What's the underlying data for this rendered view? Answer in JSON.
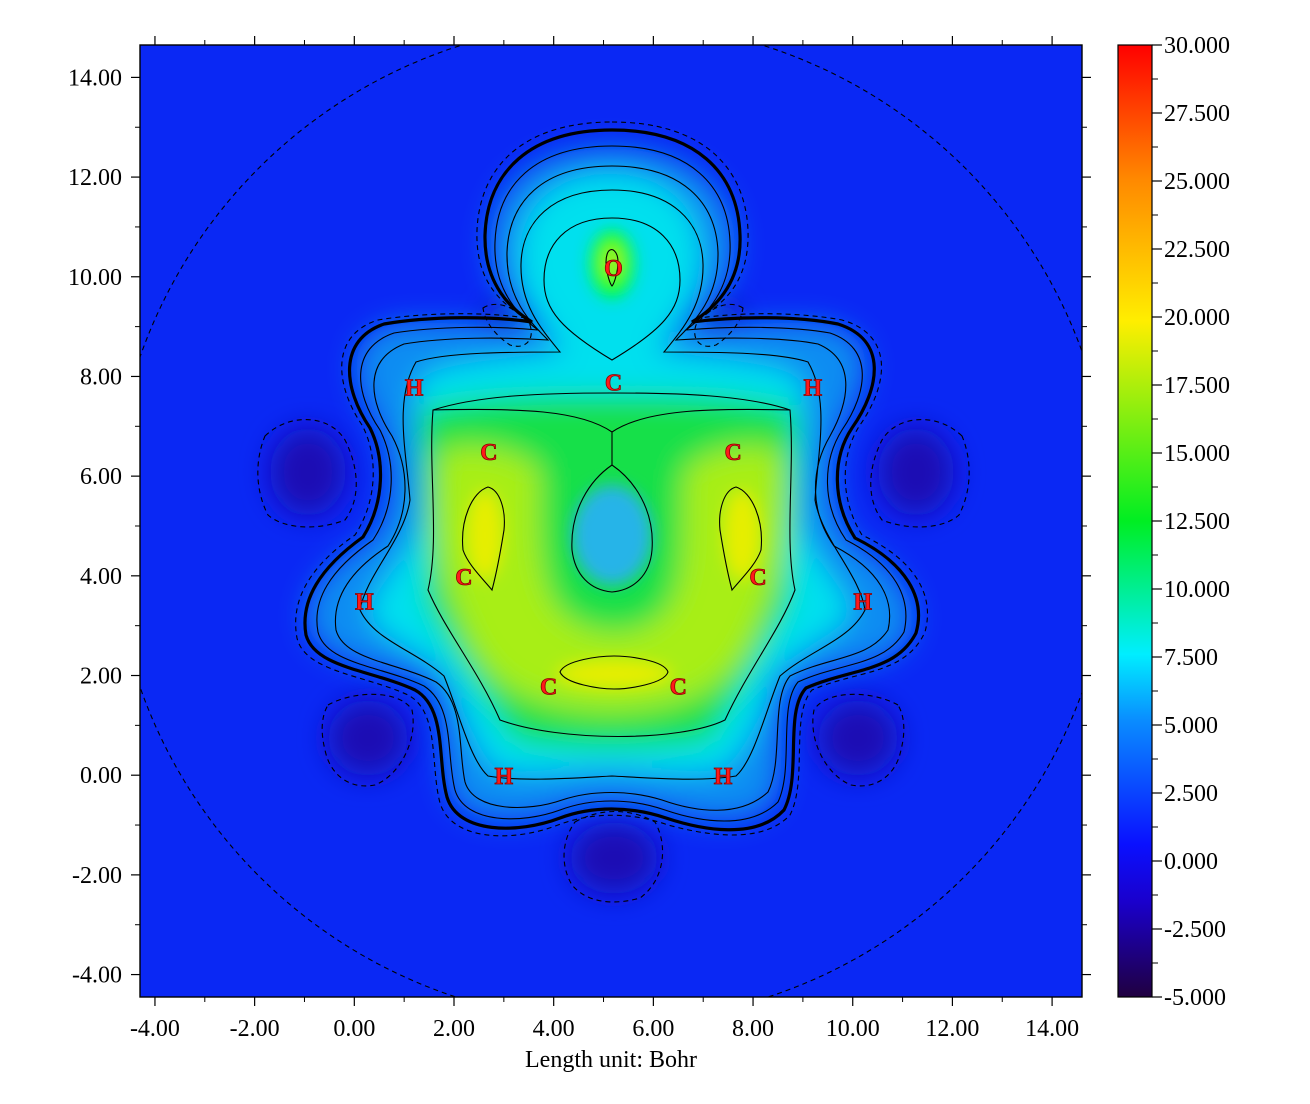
{
  "chart_data": {
    "type": "heatmap",
    "xlabel": "Length unit: Bohr",
    "xlim": [
      -4.3,
      14.6
    ],
    "ylim": [
      -4.45,
      14.65
    ],
    "x_ticks": [
      "-4.00",
      "-2.00",
      "0.00",
      "2.00",
      "4.00",
      "6.00",
      "8.00",
      "10.00",
      "12.00",
      "14.00"
    ],
    "y_ticks": [
      "14.00",
      "12.00",
      "10.00",
      "8.00",
      "6.00",
      "4.00",
      "2.00",
      "0.00",
      "-2.00",
      "-4.00"
    ],
    "colorbar": {
      "min": -5.0,
      "max": 30.0,
      "ticks": [
        "30.000",
        "27.500",
        "25.000",
        "22.500",
        "20.000",
        "17.500",
        "15.000",
        "12.500",
        "10.000",
        "7.500",
        "5.000",
        "2.500",
        "0.000",
        "-2.500",
        "-5.000"
      ],
      "colors": [
        "#ff0000",
        "#ff7700",
        "#ffee00",
        "#00ee00",
        "#00eeff",
        "#0044ff",
        "#1a00cc",
        "#200040"
      ]
    },
    "atoms": [
      {
        "label": "O",
        "x": 5.2,
        "y": 10.2
      },
      {
        "label": "C",
        "x": 5.2,
        "y": 7.9
      },
      {
        "label": "H",
        "x": 1.2,
        "y": 7.8
      },
      {
        "label": "H",
        "x": 9.2,
        "y": 7.8
      },
      {
        "label": "C",
        "x": 2.7,
        "y": 6.5
      },
      {
        "label": "C",
        "x": 7.6,
        "y": 6.5
      },
      {
        "label": "C",
        "x": 2.2,
        "y": 4.0
      },
      {
        "label": "C",
        "x": 8.1,
        "y": 4.0
      },
      {
        "label": "H",
        "x": 0.2,
        "y": 3.5
      },
      {
        "label": "H",
        "x": 10.2,
        "y": 3.5
      },
      {
        "label": "C",
        "x": 3.9,
        "y": 1.8
      },
      {
        "label": "C",
        "x": 6.5,
        "y": 1.8
      },
      {
        "label": "H",
        "x": 3.0,
        "y": 0.0
      },
      {
        "label": "H",
        "x": 7.4,
        "y": 0.0
      }
    ]
  }
}
